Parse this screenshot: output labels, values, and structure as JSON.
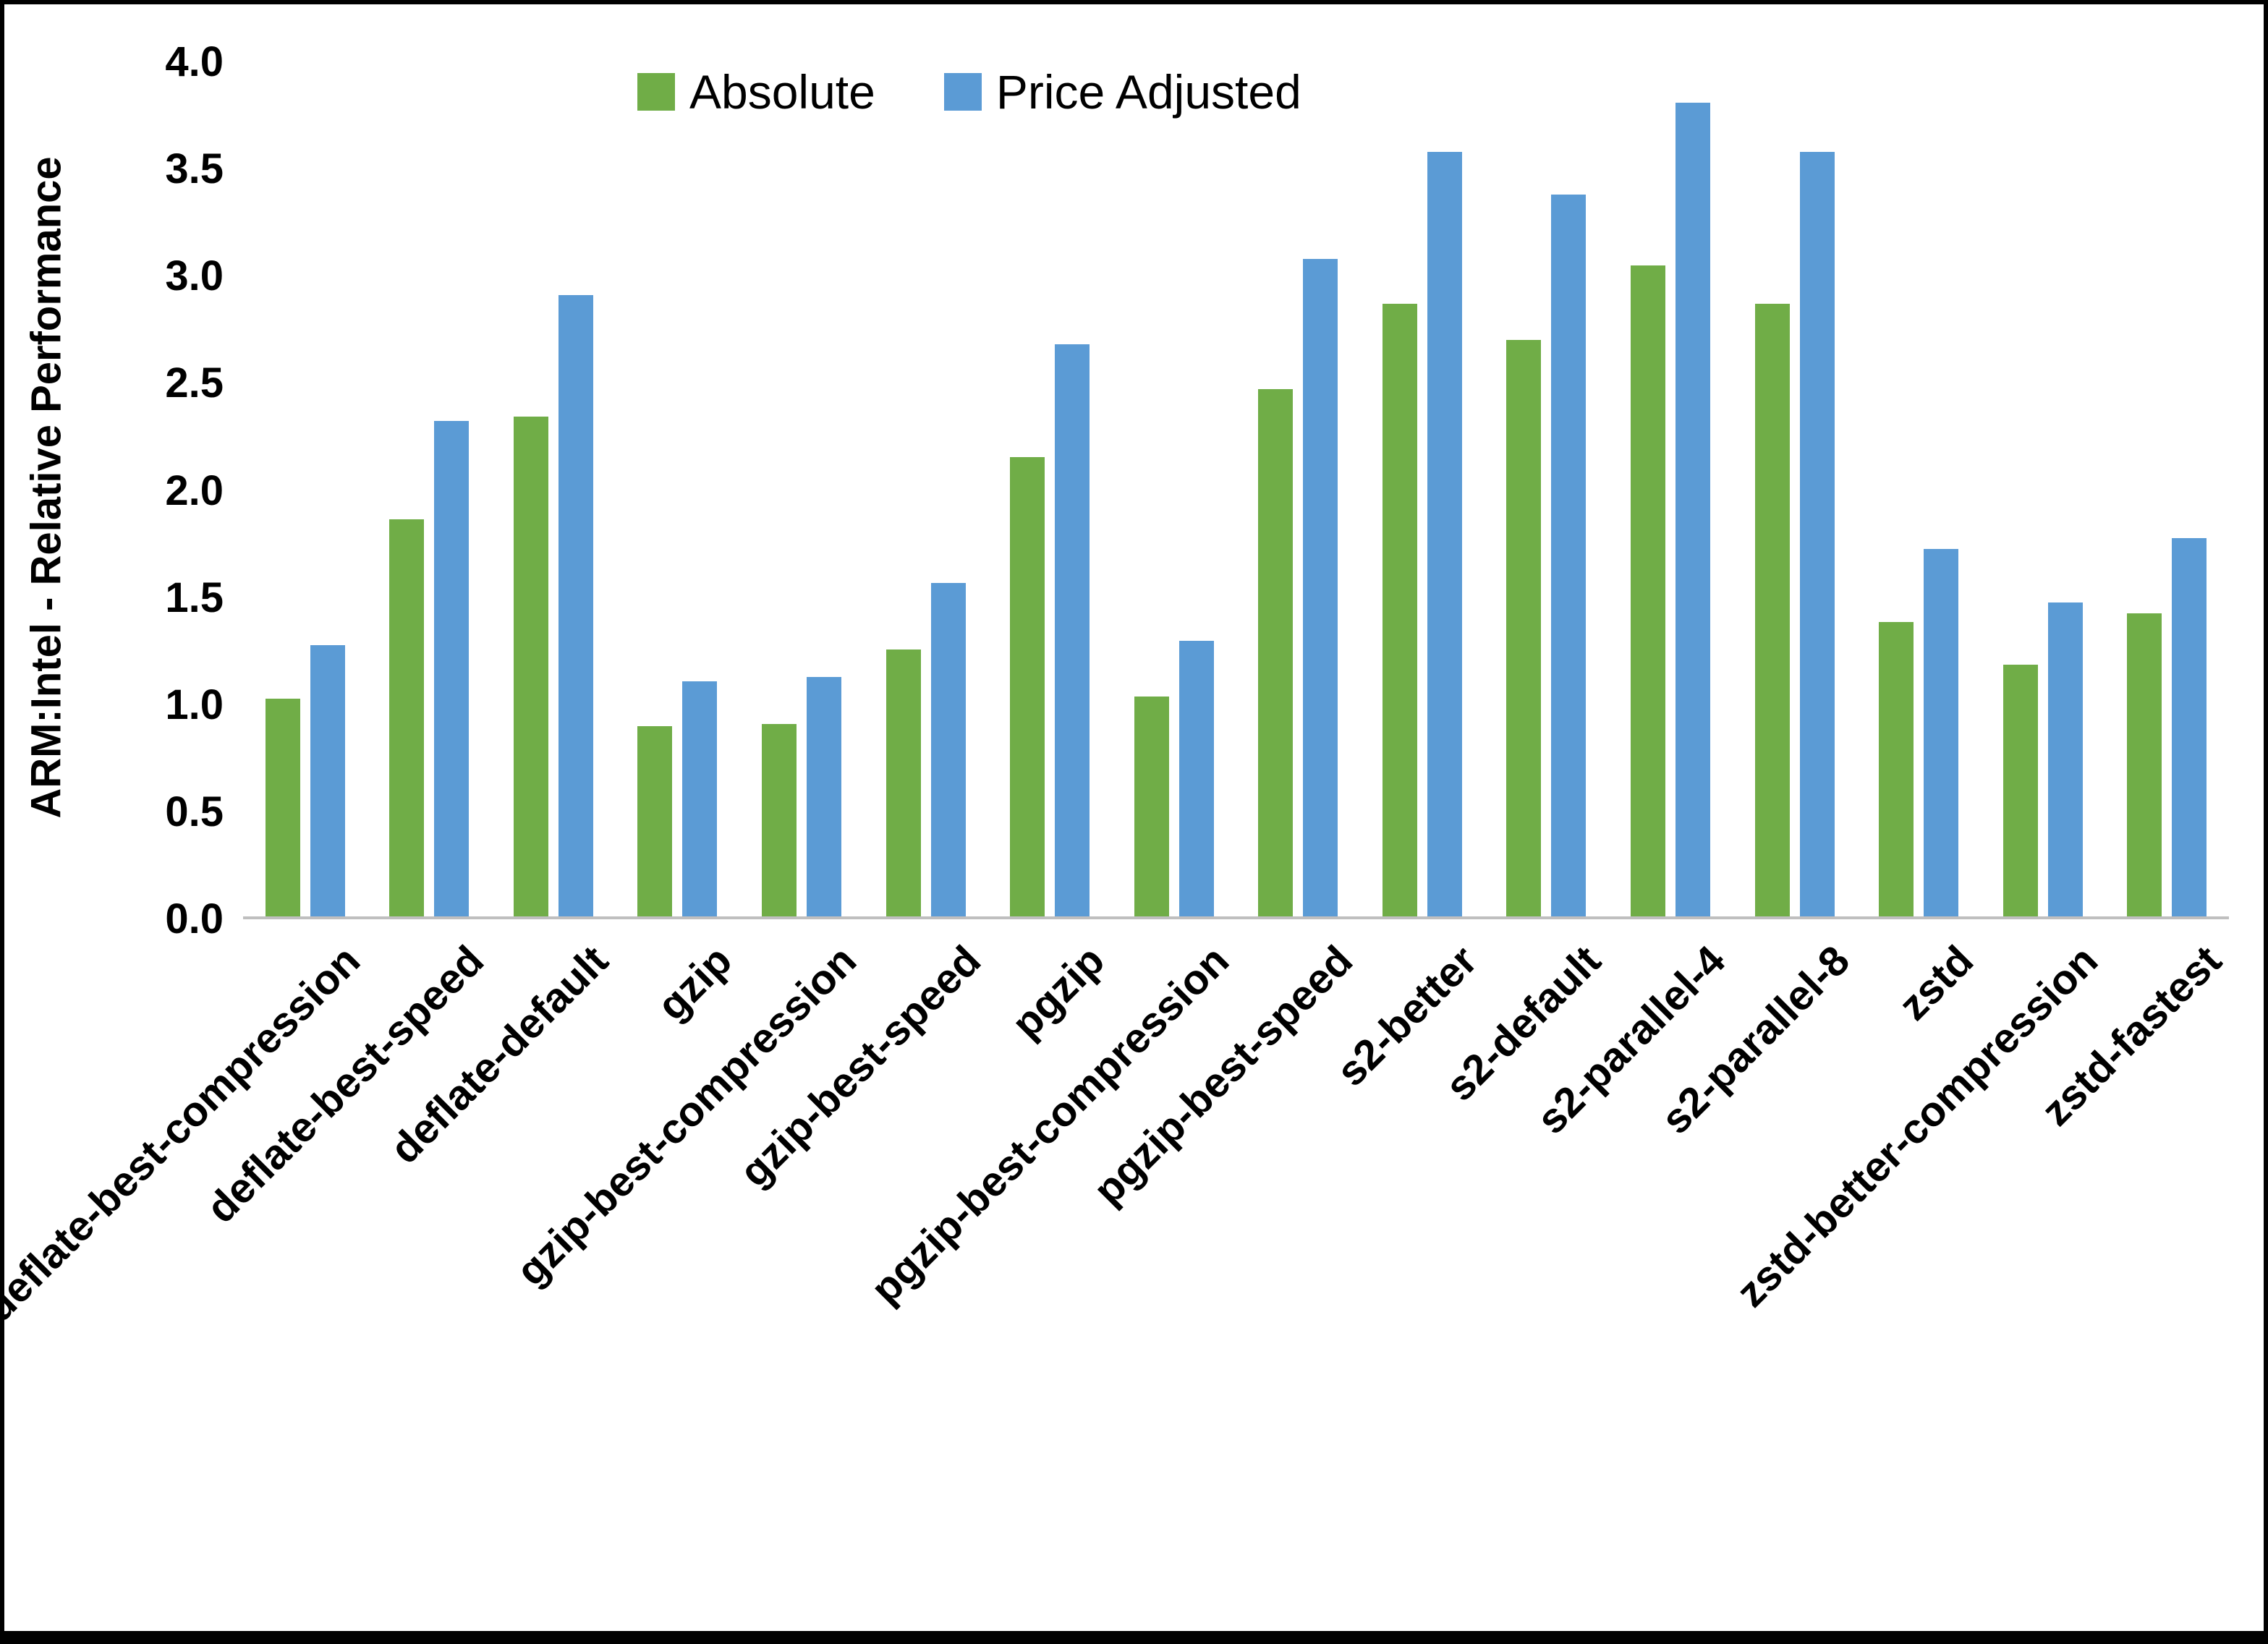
{
  "chart_data": {
    "type": "bar",
    "title": "",
    "xlabel": "",
    "ylabel": "ARM:Intel - Relative Performance",
    "ylim": [
      0.0,
      4.0
    ],
    "ytick_step": 0.5,
    "ytick_labels": [
      "0.0",
      "0.5",
      "1.0",
      "1.5",
      "2.0",
      "2.5",
      "3.0",
      "3.5",
      "4.0"
    ],
    "grid": false,
    "legend_position": "top-center",
    "background_color": "#ffffff",
    "axis_line_color": "#bfbfbf",
    "categories": [
      "deflate-best-compression",
      "deflate-best-speed",
      "deflate-default",
      "gzip",
      "gzip-best-compression",
      "gzip-best-speed",
      "pgzip",
      "pgzip-best-compression",
      "pgzip-best-speed",
      "s2-better",
      "s2-default",
      "s2-parallel-4",
      "s2-parallel-8",
      "zstd",
      "zstd-better-compression",
      "zstd-fastest"
    ],
    "series": [
      {
        "name": "Absolute",
        "color": "#70AD47",
        "values": [
          1.02,
          1.86,
          2.34,
          0.89,
          0.9,
          1.25,
          2.15,
          1.03,
          2.47,
          2.87,
          2.7,
          3.05,
          2.87,
          1.38,
          1.18,
          1.42
        ]
      },
      {
        "name": "Price Adjusted",
        "color": "#5B9BD5",
        "values": [
          1.27,
          2.32,
          2.91,
          1.1,
          1.12,
          1.56,
          2.68,
          1.29,
          3.08,
          3.58,
          3.38,
          3.81,
          3.58,
          1.72,
          1.47,
          1.77
        ]
      }
    ]
  }
}
